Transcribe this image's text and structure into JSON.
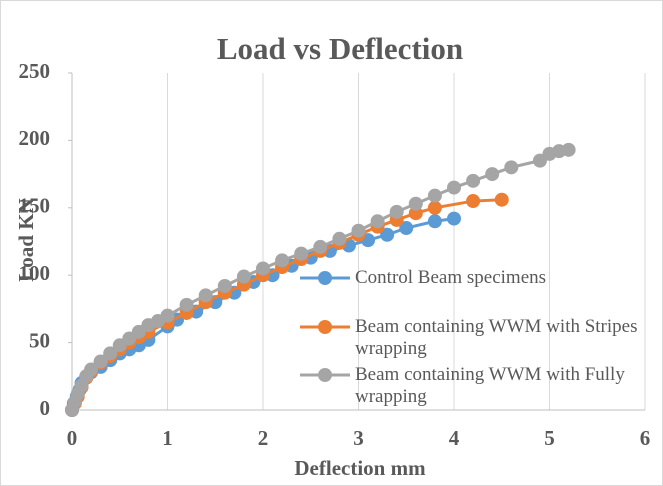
{
  "chart_data": {
    "type": "line",
    "title": "Load vs Deflection",
    "x_label": "Deflection mm",
    "y_label": "Load KN",
    "xlim": [
      0,
      6
    ],
    "xticks": [
      0,
      1,
      2,
      3,
      4,
      5,
      6
    ],
    "ylim": [
      0,
      250
    ],
    "yticks": [
      0,
      50,
      100,
      150,
      200,
      250
    ],
    "grid": true,
    "legend": "right",
    "series": [
      {
        "name": "Control Beam specimens",
        "color": "#5b9bd5",
        "x": [
          0,
          0.02,
          0.05,
          0.08,
          0.1,
          0.15,
          0.2,
          0.3,
          0.4,
          0.5,
          0.6,
          0.7,
          0.8,
          1.0,
          1.1,
          1.3,
          1.5,
          1.7,
          1.9,
          2.1,
          2.3,
          2.5,
          2.7,
          2.9,
          3.1,
          3.3,
          3.5,
          3.8,
          4.0
        ],
        "values": [
          0,
          5,
          10,
          15,
          20,
          25,
          28,
          32,
          37,
          42,
          45,
          48,
          52,
          62,
          67,
          73,
          80,
          87,
          95,
          100,
          107,
          113,
          118,
          122,
          126,
          130,
          135,
          140,
          142
        ]
      },
      {
        "name": "Beam containing WWM with Stripes wrapping",
        "color": "#ed7d31",
        "x": [
          0,
          0.03,
          0.06,
          0.1,
          0.15,
          0.2,
          0.3,
          0.4,
          0.5,
          0.6,
          0.7,
          0.8,
          1.0,
          1.2,
          1.4,
          1.6,
          1.8,
          2.0,
          2.2,
          2.4,
          2.6,
          2.8,
          3.0,
          3.2,
          3.4,
          3.6,
          3.8,
          4.2,
          4.5
        ],
        "values": [
          0,
          5,
          10,
          17,
          24,
          29,
          35,
          40,
          45,
          50,
          54,
          58,
          65,
          72,
          80,
          87,
          93,
          100,
          106,
          112,
          118,
          124,
          130,
          136,
          141,
          146,
          150,
          155,
          156
        ]
      },
      {
        "name": "Beam containing WWM with Fully wrapping",
        "color": "#a5a5a5",
        "x": [
          0,
          0.03,
          0.06,
          0.1,
          0.15,
          0.2,
          0.3,
          0.4,
          0.5,
          0.6,
          0.7,
          0.8,
          0.9,
          1.0,
          1.2,
          1.4,
          1.6,
          1.8,
          2.0,
          2.2,
          2.4,
          2.6,
          2.8,
          3.0,
          3.2,
          3.4,
          3.6,
          3.8,
          4.0,
          4.2,
          4.4,
          4.6,
          4.9,
          5.0,
          5.1,
          5.2
        ],
        "values": [
          0,
          6,
          12,
          18,
          25,
          30,
          36,
          42,
          48,
          53,
          58,
          63,
          66,
          70,
          78,
          85,
          92,
          99,
          105,
          111,
          116,
          121,
          127,
          133,
          140,
          147,
          153,
          159,
          165,
          170,
          175,
          180,
          185,
          190,
          192,
          193
        ]
      }
    ]
  }
}
